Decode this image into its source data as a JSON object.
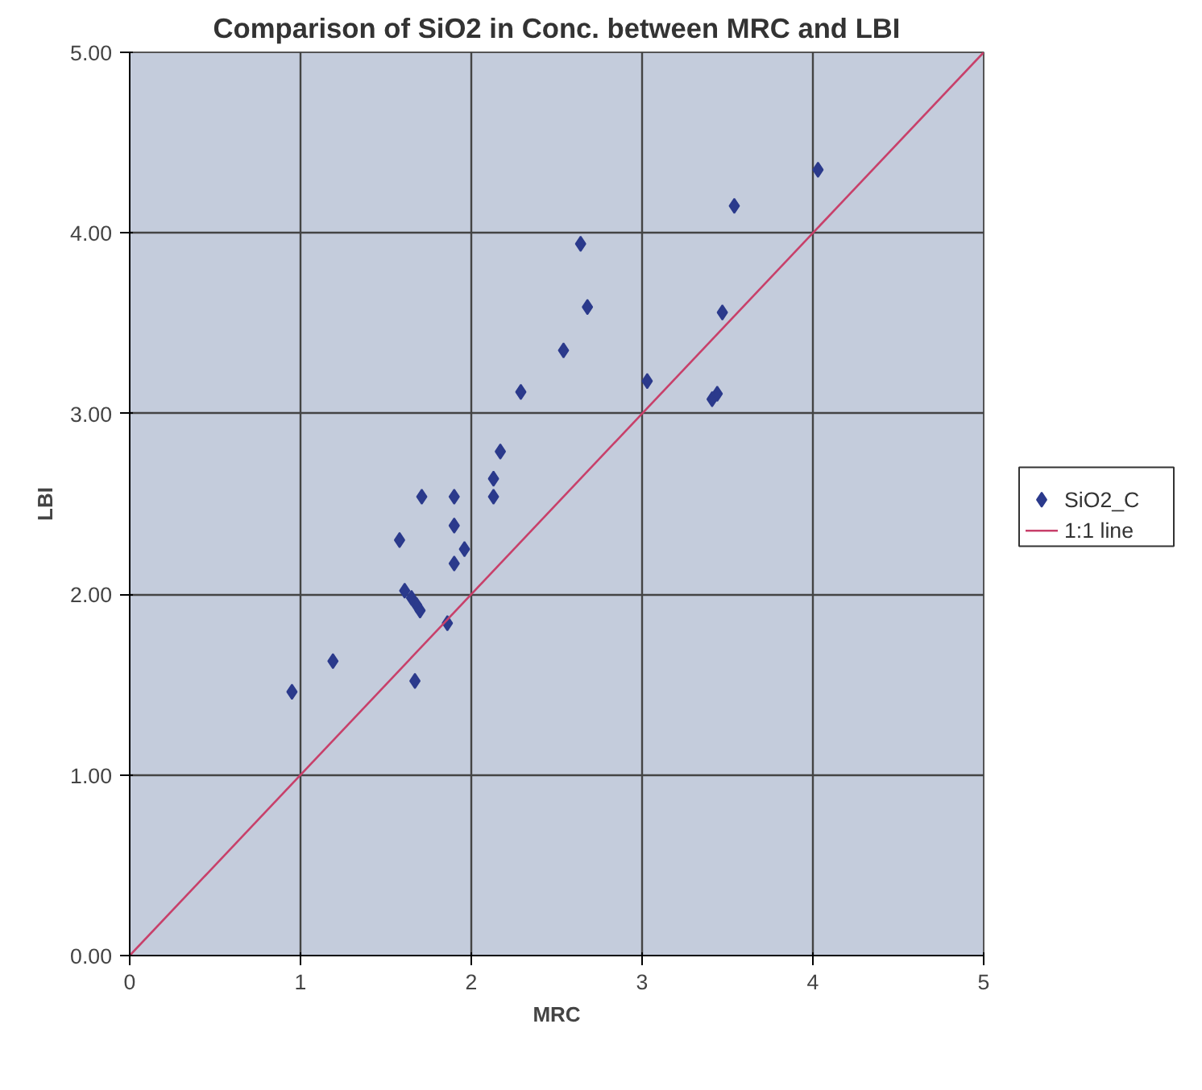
{
  "chart_data": {
    "type": "scatter",
    "title": "Comparison of SiO2 in Conc. between MRC and LBI",
    "xlabel": "MRC",
    "ylabel": "LBI",
    "xlim": [
      0,
      5
    ],
    "ylim": [
      0,
      5
    ],
    "xticks": [
      0,
      1,
      2,
      3,
      4,
      5
    ],
    "yticks": [
      {
        "value": 0,
        "label": "0.00"
      },
      {
        "value": 1,
        "label": "1.00"
      },
      {
        "value": 2,
        "label": "2.00"
      },
      {
        "value": 3,
        "label": "3.00"
      },
      {
        "value": 4,
        "label": "4.00"
      },
      {
        "value": 5,
        "label": "5.00"
      }
    ],
    "grid": true,
    "legend": "right",
    "marker": "diamond",
    "series": [
      {
        "name": "SiO2_C",
        "color": "#2b3a8c",
        "x": [
          0.95,
          1.19,
          1.58,
          1.71,
          1.9,
          1.9,
          1.96,
          1.9,
          1.61,
          1.65,
          1.68,
          1.7,
          1.86,
          1.67,
          2.13,
          2.13,
          2.17,
          2.29,
          2.54,
          2.68,
          2.64,
          3.03,
          3.41,
          3.44,
          3.47,
          3.54,
          4.03
        ],
        "values": [
          1.46,
          1.63,
          2.3,
          2.54,
          2.54,
          2.38,
          2.25,
          2.17,
          2.02,
          1.98,
          1.94,
          1.91,
          1.84,
          1.52,
          2.64,
          2.54,
          2.79,
          3.12,
          3.35,
          3.59,
          3.94,
          3.18,
          3.08,
          3.11,
          3.56,
          4.15,
          4.35
        ]
      },
      {
        "name": "1:1 line",
        "type": "line",
        "color": "#c8406a",
        "x": [
          0,
          5
        ],
        "values": [
          0,
          5
        ],
        "marker": "none",
        "line_style": "solid"
      }
    ]
  }
}
